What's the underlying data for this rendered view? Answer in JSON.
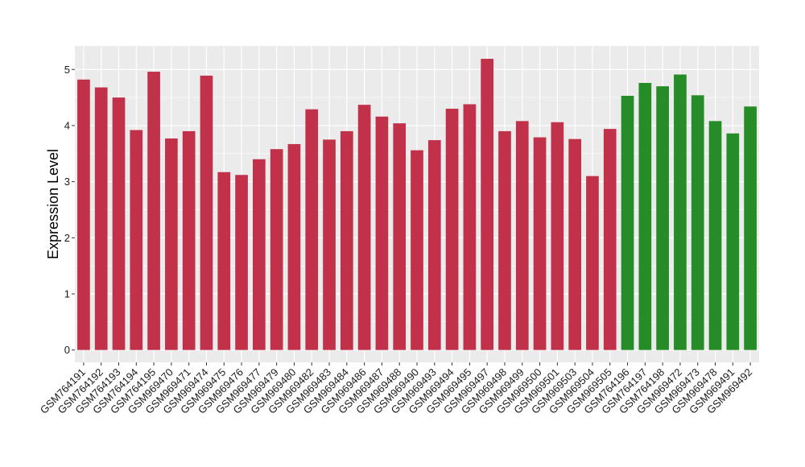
{
  "chart_data": {
    "type": "bar",
    "title": "",
    "xlabel": "",
    "ylabel": "Expression Level",
    "ylim": [
      -0.22,
      5.42
    ],
    "yticks": [
      0,
      1,
      2,
      3,
      4,
      5
    ],
    "grid": true,
    "legend": "none",
    "colors": {
      "group_1": "#c1314a",
      "group_2": "#258c27",
      "panel_background": "#ebebeb",
      "grid_line": "#ffffff"
    },
    "categories": [
      "GSM764191",
      "GSM764192",
      "GSM764193",
      "GSM764194",
      "GSM764195",
      "GSM969470",
      "GSM969471",
      "GSM969474",
      "GSM969475",
      "GSM969476",
      "GSM969477",
      "GSM969479",
      "GSM969480",
      "GSM969482",
      "GSM969483",
      "GSM969484",
      "GSM969486",
      "GSM969487",
      "GSM969488",
      "GSM969490",
      "GSM969493",
      "GSM969494",
      "GSM969495",
      "GSM969497",
      "GSM969498",
      "GSM969499",
      "GSM969500",
      "GSM969501",
      "GSM969503",
      "GSM969504",
      "GSM969505",
      "GSM764196",
      "GSM764197",
      "GSM764198",
      "GSM969472",
      "GSM969473",
      "GSM969478",
      "GSM969491",
      "GSM969492"
    ],
    "values": [
      4.82,
      4.68,
      4.5,
      3.92,
      4.96,
      3.77,
      3.9,
      4.89,
      3.17,
      3.12,
      3.4,
      3.58,
      3.67,
      4.29,
      3.75,
      3.9,
      4.37,
      4.16,
      4.04,
      3.56,
      3.74,
      4.3,
      4.38,
      5.19,
      3.9,
      4.08,
      3.79,
      4.06,
      3.76,
      3.1,
      3.94,
      4.53,
      4.76,
      4.7,
      4.91,
      4.54,
      4.08,
      3.86,
      4.34
    ],
    "groups": [
      "group_1",
      "group_1",
      "group_1",
      "group_1",
      "group_1",
      "group_1",
      "group_1",
      "group_1",
      "group_1",
      "group_1",
      "group_1",
      "group_1",
      "group_1",
      "group_1",
      "group_1",
      "group_1",
      "group_1",
      "group_1",
      "group_1",
      "group_1",
      "group_1",
      "group_1",
      "group_1",
      "group_1",
      "group_1",
      "group_1",
      "group_1",
      "group_1",
      "group_1",
      "group_1",
      "group_1",
      "group_2",
      "group_2",
      "group_2",
      "group_2",
      "group_2",
      "group_2",
      "group_2",
      "group_2"
    ]
  }
}
